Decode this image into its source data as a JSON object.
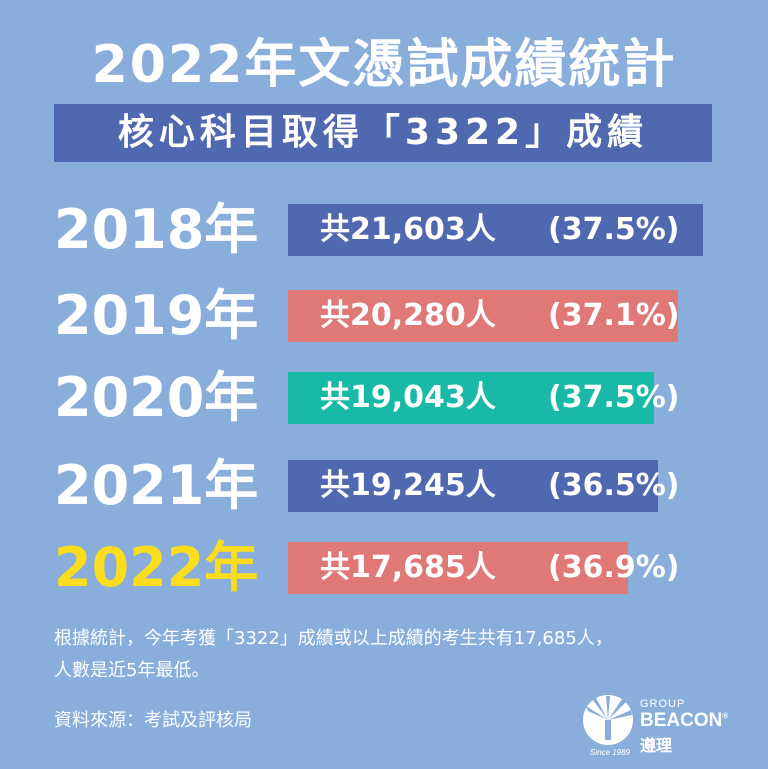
{
  "header": {
    "title": "2022年文憑試成績統計",
    "subtitle": "核心科目取得「3322」成績"
  },
  "chart_data": {
    "type": "bar",
    "categories": [
      "2018年",
      "2019年",
      "2020年",
      "2021年",
      "2022年"
    ],
    "series": [
      {
        "values": [
          21603,
          20280,
          19043,
          19245,
          17685
        ],
        "labels": [
          "共21,603人",
          "共20,280人",
          "共19,043人",
          "共19,245人",
          "共17,685人"
        ],
        "percent_labels": [
          "(37.5%)",
          "(37.1%)",
          "(37.5%)",
          "(36.5%)",
          "(36.9%)"
        ],
        "percent_values": [
          37.5,
          37.1,
          37.5,
          36.5,
          36.9
        ]
      }
    ],
    "bar_colors": [
      "#4f68b0",
      "#e07878",
      "#19b9a8",
      "#4f68b0",
      "#e07878"
    ],
    "highlight_category": "2022年",
    "highlight_color": "#fbdc1e",
    "xlim": [
      0,
      22000
    ]
  },
  "notes": {
    "line1": "根據統計，今年考獲「3322」成績或以上成績的考生共有17,685人，",
    "line2": "人數是近5年最低。"
  },
  "source": "資料來源：考試及評核局",
  "logo": {
    "group": "GROUP",
    "brand": "BEACON",
    "registered": "®",
    "chinese": "遵理",
    "since": "Since 1989"
  }
}
